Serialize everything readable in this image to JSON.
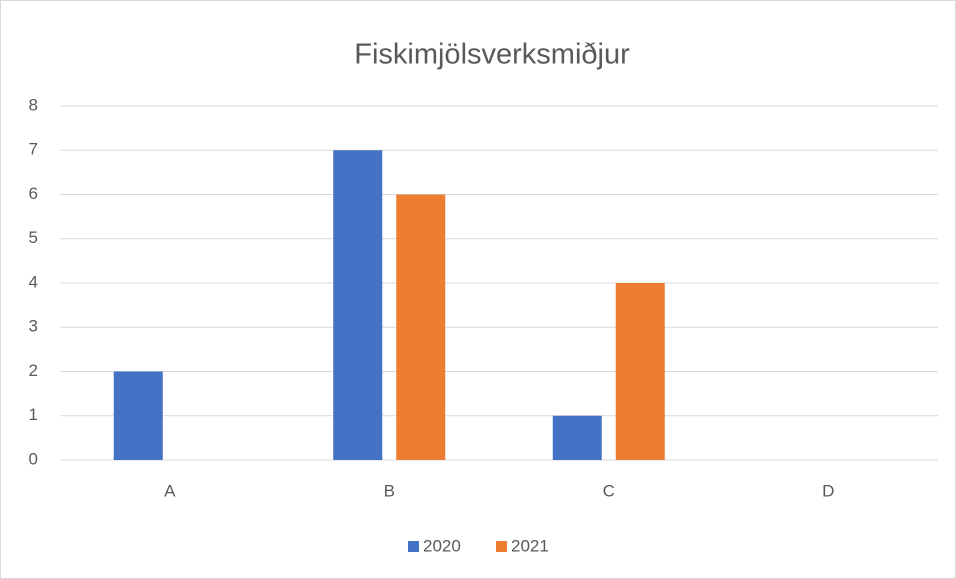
{
  "chart_data": {
    "type": "bar",
    "title": "Fiskimjölsverksmiðjur",
    "categories": [
      "A",
      "B",
      "C",
      "D"
    ],
    "series": [
      {
        "name": "2020",
        "color": "#4472c4",
        "values": [
          2,
          7,
          1,
          0
        ]
      },
      {
        "name": "2021",
        "color": "#ed7d31",
        "values": [
          0,
          6,
          4,
          0
        ]
      }
    ],
    "ylim": [
      0,
      8
    ],
    "yticks": [
      0,
      1,
      2,
      3,
      4,
      5,
      6,
      7,
      8
    ],
    "grid": true,
    "legend": "bottom"
  }
}
